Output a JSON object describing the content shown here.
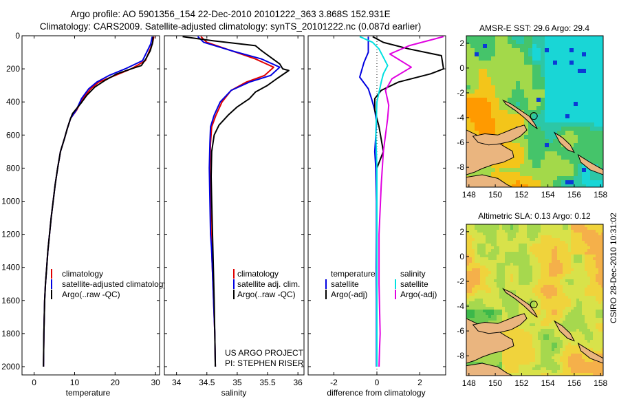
{
  "header": {
    "line1": "Argo profile: AO 5901356_154 22-Dec-2010 20101222_363 3.868S 152.931E",
    "line2": "Climatology: CARS2009. Satellite-adjusted climatology: synTS_20101222.nc (0.087d earlier)"
  },
  "side_stamp": "CSIRO 28-Dec-2010 10:31:02",
  "colors": {
    "climatology": "#e00000",
    "satellite": "#0000e0",
    "argo": "#000000",
    "sal_satellite": "#00e0e0",
    "sal_argo": "#e000e0"
  },
  "chart_data": [
    {
      "type": "line",
      "id": "temperature",
      "xlabel": "temperature",
      "ylabel": "",
      "xlim": [
        -3,
        31
      ],
      "ylim": [
        2050,
        0
      ],
      "xticks": [
        0,
        10,
        20,
        30
      ],
      "yticks": [
        0,
        200,
        400,
        600,
        800,
        1000,
        1200,
        1400,
        1600,
        1800,
        2000
      ],
      "legend": [
        "climatology",
        "satellite-adjusted climatology",
        "Argo(..raw -QC)"
      ],
      "series": [
        {
          "name": "climatology",
          "color": "#e00000",
          "x": [
            29.6,
            29.2,
            27.5,
            24,
            20,
            16,
            14,
            12,
            10.5,
            9,
            8.2,
            7.5,
            6.5,
            5.8,
            5.2,
            4.7,
            4.2,
            3.8,
            3.4,
            3.1,
            2.8,
            2.6,
            2.4,
            2.3
          ],
          "y": [
            5,
            50,
            150,
            200,
            240,
            280,
            320,
            380,
            450,
            500,
            560,
            620,
            700,
            800,
            900,
            1000,
            1100,
            1200,
            1300,
            1400,
            1500,
            1600,
            1800,
            2000
          ]
        },
        {
          "name": "satellite",
          "color": "#0000e0",
          "x": [
            29.2,
            28.8,
            26.8,
            22.5,
            18.5,
            15.5,
            13.5,
            11.7,
            10.4,
            9,
            8.2,
            7.5,
            6.5,
            5.8,
            5.2,
            4.7,
            4.2,
            3.8,
            3.4,
            3.1,
            2.8,
            2.6,
            2.4,
            2.3
          ],
          "x_note": "",
          "y": [
            5,
            50,
            150,
            200,
            240,
            280,
            320,
            380,
            450,
            500,
            560,
            620,
            700,
            800,
            900,
            1000,
            1100,
            1200,
            1300,
            1400,
            1500,
            1600,
            1800,
            2000
          ]
        },
        {
          "name": "argo",
          "color": "#000000",
          "x": [
            29.4,
            29.3,
            28.7,
            27.6,
            26.5,
            24,
            20.5,
            17.5,
            15,
            13,
            11.5,
            10.5,
            9.5,
            9,
            8.2,
            7.5,
            6.5,
            5.8,
            5.2,
            4.7,
            4.2,
            3.8,
            3.4,
            3.1,
            2.8,
            2.6,
            2.4,
            2.3
          ],
          "y": [
            5,
            40,
            90,
            140,
            180,
            200,
            230,
            270,
            310,
            360,
            410,
            440,
            470,
            500,
            560,
            620,
            700,
            800,
            900,
            1000,
            1100,
            1200,
            1300,
            1400,
            1500,
            1600,
            1800,
            2000
          ]
        }
      ]
    },
    {
      "type": "line",
      "id": "salinity",
      "xlabel": "salinity",
      "xlim": [
        33.8,
        36.1
      ],
      "ylim": [
        2050,
        0
      ],
      "xticks": [
        34,
        34.5,
        35,
        35.5,
        36
      ],
      "legend": [
        "climatology",
        "satellite adj. clim.",
        "Argo(..raw -QC)"
      ],
      "series": [
        {
          "name": "climatology",
          "color": "#e00000",
          "x": [
            34.4,
            34.5,
            34.9,
            35.3,
            35.6,
            35.45,
            35.15,
            34.9,
            34.75,
            34.65,
            34.58,
            34.56,
            34.55,
            34.56,
            34.57,
            34.58,
            34.59,
            34.6,
            34.61,
            34.62,
            34.63,
            34.64
          ],
          "y": [
            5,
            40,
            90,
            140,
            190,
            240,
            280,
            330,
            400,
            480,
            550,
            650,
            800,
            1000,
            1200,
            1300,
            1400,
            1500,
            1600,
            1700,
            1800,
            2000
          ]
        },
        {
          "name": "satellite",
          "color": "#0000e0",
          "x": [
            34.35,
            34.45,
            34.9,
            35.4,
            35.7,
            35.55,
            35.2,
            34.9,
            34.72,
            34.62,
            34.56,
            34.55,
            34.54,
            34.55,
            34.56,
            34.58,
            34.59,
            34.6,
            34.61,
            34.62,
            34.63,
            34.64
          ],
          "y": [
            5,
            40,
            90,
            140,
            190,
            240,
            280,
            330,
            400,
            480,
            550,
            650,
            800,
            1000,
            1200,
            1300,
            1400,
            1500,
            1600,
            1700,
            1800,
            2000
          ]
        },
        {
          "name": "argo",
          "color": "#000000",
          "x": [
            34.1,
            34.6,
            35.3,
            35.4,
            35.55,
            35.7,
            35.75,
            35.85,
            35.65,
            35.5,
            35.3,
            35.2,
            35.0,
            34.85,
            34.7,
            34.62,
            34.58,
            34.57,
            34.58,
            34.6,
            34.62,
            34.63,
            34.64
          ],
          "y": [
            5,
            30,
            60,
            90,
            130,
            170,
            200,
            210,
            260,
            300,
            340,
            380,
            430,
            480,
            540,
            600,
            700,
            850,
            1000,
            1300,
            1600,
            1800,
            2000
          ]
        }
      ]
    },
    {
      "type": "line",
      "id": "difference",
      "xlabel": "difference from climatology",
      "xlim": [
        -3.2,
        3.2
      ],
      "ylim": [
        2050,
        0
      ],
      "xticks": [
        -2,
        0,
        2
      ],
      "legend_temperature": {
        "title": "temperature",
        "items": [
          "satellite",
          "Argo(-adj)"
        ]
      },
      "legend_salinity": {
        "title": "salinity",
        "items": [
          "satellite",
          "Argo(-adj)"
        ]
      },
      "series": [
        {
          "name": "temperature satellite",
          "color": "#0000e0",
          "x": [
            -0.4,
            -0.4,
            -0.6,
            -0.8,
            -0.4,
            -0.25,
            -0.1,
            -0.02,
            -0.05,
            -0.1,
            -0.05,
            -0.02,
            -0.02,
            -0.03,
            -0.02,
            -0.02,
            -0.02
          ],
          "y": [
            5,
            100,
            160,
            250,
            320,
            380,
            450,
            520,
            600,
            700,
            800,
            1000,
            1200,
            1400,
            1600,
            1800,
            2000
          ]
        },
        {
          "name": "temperature argo",
          "color": "#000000",
          "x": [
            -0.2,
            0.3,
            1.5,
            3.0,
            3.1,
            2.5,
            1.0,
            0.2,
            -0.1,
            -0.1,
            0.1,
            0.3,
            0.0,
            0.0,
            0.0,
            0.0,
            0.0,
            0.0,
            0.0,
            0.0
          ],
          "y": [
            5,
            40,
            80,
            120,
            200,
            230,
            280,
            330,
            380,
            450,
            550,
            700,
            800,
            1000,
            1200,
            1400,
            1600,
            1800,
            1900,
            2000
          ]
        },
        {
          "name": "salinity satellite",
          "color": "#00e0e0",
          "x": [
            -0.8,
            -0.2,
            0.1,
            0.3,
            0.5,
            0.3,
            0.2,
            0.0,
            -0.05,
            0.0,
            0.0,
            0.0,
            0.0,
            0.0,
            0.0
          ],
          "y": [
            5,
            40,
            80,
            130,
            180,
            230,
            280,
            400,
            600,
            800,
            1000,
            1300,
            1600,
            1800,
            2000
          ]
        },
        {
          "name": "salinity argo",
          "color": "#e000e0",
          "x": [
            3.1,
            1.5,
            0.6,
            1.6,
            0.7,
            0.4,
            0.55,
            0.5,
            0.3,
            0.2,
            0.1,
            0.1,
            0.15,
            0.12,
            0.1
          ],
          "y": [
            5,
            60,
            110,
            190,
            260,
            330,
            420,
            500,
            700,
            900,
            1200,
            1500,
            1800,
            1900,
            2000
          ]
        }
      ]
    },
    {
      "type": "heatmap",
      "id": "sst-map",
      "title": "AMSR-E SST: 29.6 Argo: 29.4",
      "xlim": [
        147.8,
        158.2
      ],
      "ylim": [
        -9.6,
        2.6
      ],
      "xticks": [
        148,
        150,
        152,
        154,
        156,
        158
      ],
      "yticks": [
        2,
        0,
        -2,
        -4,
        -6,
        -8
      ],
      "argo_position": {
        "lon": 152.931,
        "lat": -3.868
      }
    },
    {
      "type": "heatmap",
      "id": "sla-map",
      "title": "Altimetric SLA: 0.13 Argo: 0.12",
      "xlim": [
        147.8,
        158.2
      ],
      "ylim": [
        -9.6,
        2.6
      ],
      "xticks": [
        148,
        150,
        152,
        154,
        156,
        158
      ],
      "yticks": [
        2,
        0,
        -2,
        -4,
        -6,
        -8
      ],
      "argo_position": {
        "lon": 152.931,
        "lat": -3.868
      }
    }
  ],
  "project": {
    "line1": "US ARGO PROJECT",
    "line2": "PI: STEPHEN RISER"
  }
}
